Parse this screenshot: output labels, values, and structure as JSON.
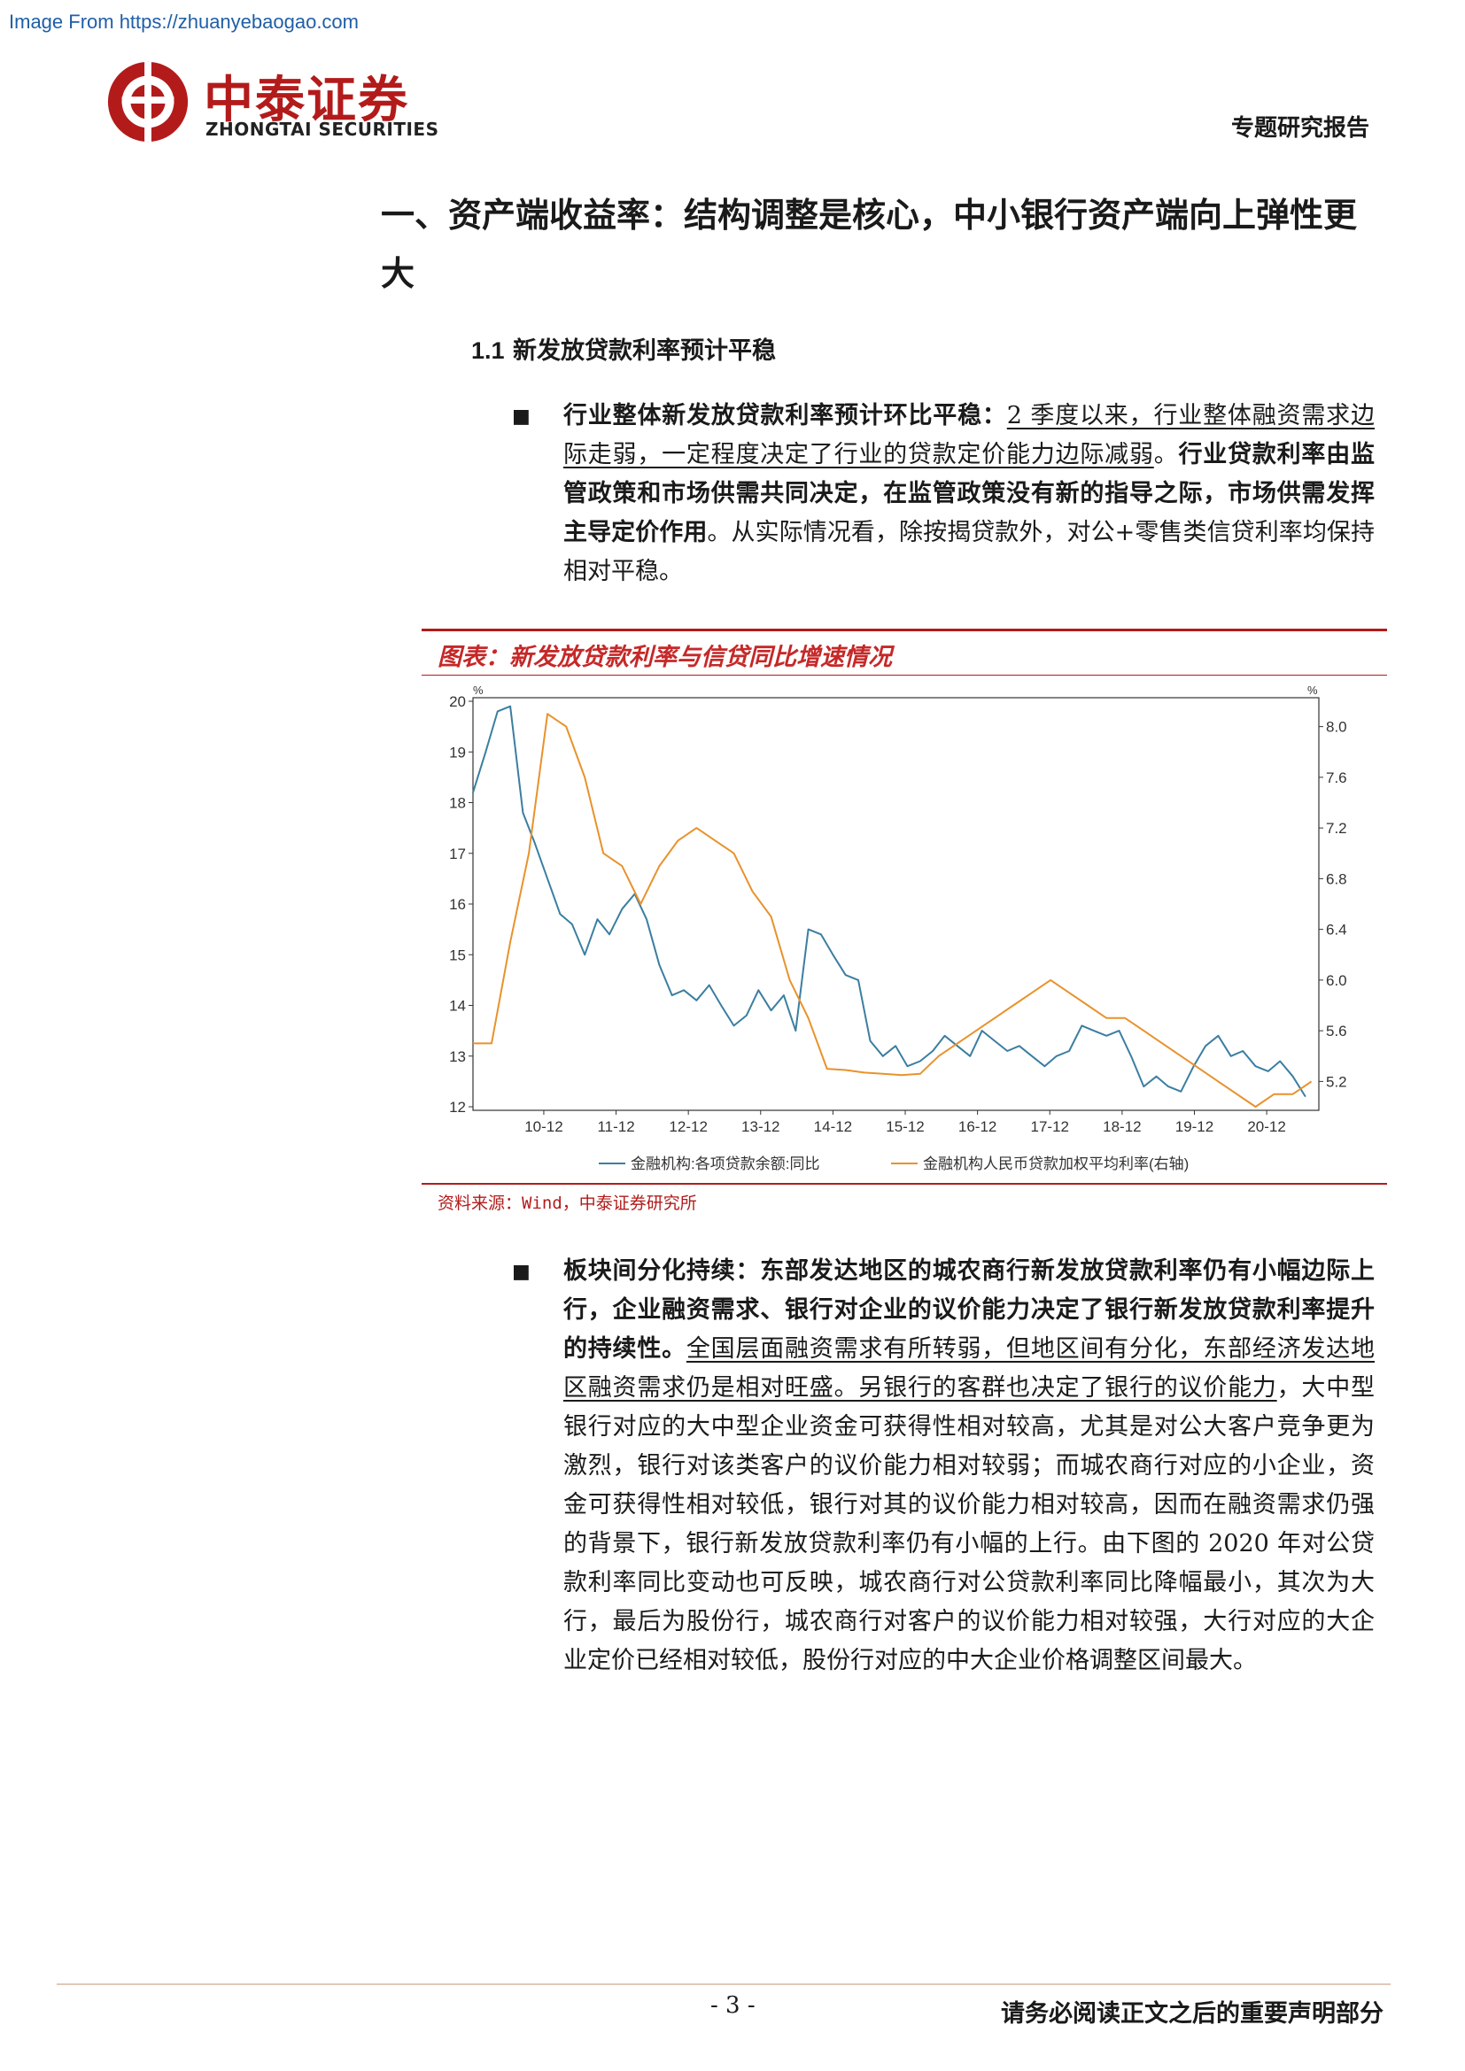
{
  "watermark": "Image From https://zhuanyebaogao.com",
  "logo": {
    "name_cn": "中泰证券",
    "name_en": "ZHONGTAI SECURITIES",
    "brand_color": "#b31b1b"
  },
  "header": {
    "report_type": "专题研究报告"
  },
  "section": {
    "title": "一、资产端收益率：结构调整是核心，中小银行资产端向上弹性更大"
  },
  "subsection": {
    "number": "1.1",
    "title": "新发放贷款利率预计平稳"
  },
  "para1": {
    "bullet": "■",
    "bold_lead": "行业整体新发放贷款利率预计环比平稳：",
    "underlined": "2 季度以来，行业整体融资需求边际走弱，一定程度决定了行业的贷款定价能力边际减弱",
    "sep": "。",
    "bold_mid": "行业贷款利率由监管政策和市场供需共同决定，在监管政策没有新的指导之际，市场供需发挥主导定价作用",
    "tail": "。从实际情况看，除按揭贷款外，对公+零售类信贷利率均保持相对平稳。"
  },
  "figure": {
    "title": "图表：新发放贷款利率与信贷同比增速情况",
    "source": "资料来源：Wind，中泰证券研究所"
  },
  "chart_data": {
    "type": "line",
    "x_ticks": [
      "10-12",
      "11-12",
      "12-12",
      "13-12",
      "14-12",
      "15-12",
      "16-12",
      "17-12",
      "18-12",
      "19-12",
      "20-12"
    ],
    "left_axis": {
      "unit": "%",
      "range": [
        12,
        20
      ],
      "ticks": [
        12,
        13,
        14,
        15,
        16,
        17,
        18,
        19,
        20
      ]
    },
    "right_axis": {
      "unit": "%",
      "range": [
        5.0,
        8.2
      ],
      "ticks": [
        5.2,
        5.6,
        6.0,
        6.4,
        6.8,
        7.2,
        7.6,
        8.0
      ]
    },
    "series": [
      {
        "name": "金融机构:各项贷款余额:同比",
        "axis": "left",
        "color": "#3b7ea1",
        "x": [
          2010.0,
          2010.17,
          2010.33,
          2010.5,
          2010.67,
          2010.83,
          2011.0,
          2011.17,
          2011.33,
          2011.5,
          2011.67,
          2011.83,
          2012.0,
          2012.17,
          2012.33,
          2012.5,
          2012.67,
          2012.83,
          2013.0,
          2013.17,
          2013.33,
          2013.5,
          2013.67,
          2013.83,
          2014.0,
          2014.17,
          2014.33,
          2014.5,
          2014.67,
          2014.83,
          2015.0,
          2015.17,
          2015.33,
          2015.5,
          2015.67,
          2015.83,
          2016.0,
          2016.17,
          2016.33,
          2016.5,
          2016.67,
          2016.83,
          2017.0,
          2017.17,
          2017.33,
          2017.5,
          2017.67,
          2017.83,
          2018.0,
          2018.17,
          2018.33,
          2018.5,
          2018.67,
          2018.83,
          2019.0,
          2019.17,
          2019.33,
          2019.5,
          2019.67,
          2019.83,
          2020.0,
          2020.17,
          2020.33,
          2020.5,
          2020.67,
          2020.83,
          2021.0,
          2021.17
        ],
        "values": [
          18.2,
          19.0,
          19.8,
          19.9,
          17.8,
          17.2,
          16.5,
          15.8,
          15.6,
          15.0,
          15.7,
          15.4,
          15.9,
          16.2,
          15.7,
          14.8,
          14.2,
          14.3,
          14.1,
          14.4,
          14.0,
          13.6,
          13.8,
          14.3,
          13.9,
          14.2,
          13.5,
          15.5,
          15.4,
          15.0,
          14.6,
          14.5,
          13.3,
          13.0,
          13.2,
          12.8,
          12.9,
          13.1,
          13.4,
          13.2,
          13.0,
          13.5,
          13.3,
          13.1,
          13.2,
          13.0,
          12.8,
          13.0,
          13.1,
          13.6,
          13.5,
          13.4,
          13.5,
          13.0,
          12.4,
          12.6,
          12.4,
          12.3,
          12.8,
          13.2,
          13.4,
          13.0,
          13.1,
          12.8,
          12.7,
          12.9,
          12.6,
          12.2
        ],
        "label": "金融机构:各项贷款余额:同比"
      },
      {
        "name": "金融机构人民币贷款加权平均利率(右轴)",
        "axis": "right",
        "color": "#e8922c",
        "x": [
          2010.0,
          2010.25,
          2010.5,
          2010.75,
          2011.0,
          2011.25,
          2011.5,
          2011.75,
          2012.0,
          2012.25,
          2012.5,
          2012.75,
          2013.0,
          2013.25,
          2013.5,
          2013.75,
          2014.0,
          2014.25,
          2014.5,
          2014.75,
          2015.0,
          2015.25,
          2015.5,
          2015.75,
          2016.0,
          2016.25,
          2016.5,
          2016.75,
          2017.0,
          2017.25,
          2017.5,
          2017.75,
          2018.0,
          2018.25,
          2018.5,
          2018.75,
          2019.0,
          2019.25,
          2019.5,
          2019.75,
          2020.0,
          2020.25,
          2020.5,
          2020.75,
          2021.0,
          2021.25
        ],
        "values": [
          5.5,
          5.5,
          6.3,
          7.0,
          8.1,
          8.0,
          7.6,
          7.0,
          6.9,
          6.6,
          6.9,
          7.1,
          7.2,
          7.1,
          7.0,
          6.7,
          6.5,
          6.0,
          5.7,
          5.3,
          5.29,
          5.27,
          5.26,
          5.25,
          5.26,
          5.4,
          5.5,
          5.6,
          5.7,
          5.8,
          5.9,
          6.0,
          5.9,
          5.8,
          5.7,
          5.7,
          5.6,
          5.5,
          5.4,
          5.3,
          5.2,
          5.1,
          5.0,
          5.1,
          5.1,
          5.2
        ],
        "label": "金融机构人民币贷款加权平均利率(右轴)"
      }
    ]
  },
  "para2": {
    "bullet": "■",
    "bold_lead": "板块间分化持续：东部发达地区的城农商行新发放贷款利率仍有小幅边际上行，企业融资需求、银行对企业的议价能力决定了银行新发放贷款利率提升的持续性。",
    "underlined": "全国层面融资需求有所转弱，但地区间有分化，东部经济发达地区融资需求仍是相对旺盛。另银行的客群也决定了银行的议价能力",
    "tail": "，大中型银行对应的大中型企业资金可获得性相对较高，尤其是对公大客户竞争更为激烈，银行对该类客户的议价能力相对较弱；而城农商行对应的小企业，资金可获得性相对较低，银行对其的议价能力相对较高，因而在融资需求仍强的背景下，银行新发放贷款利率仍有小幅的上行。由下图的 2020 年对公贷款利率同比变动也可反映，城农商行对公贷款利率同比降幅最小，其次为大行，最后为股份行，城农商行对客户的议价能力相对较强，大行对应的大企业定价已经相对较低，股份行对应的中大企业价格调整区间最大。"
  },
  "footer": {
    "page": "- 3 -",
    "note": "请务必阅读正文之后的重要声明部分"
  }
}
